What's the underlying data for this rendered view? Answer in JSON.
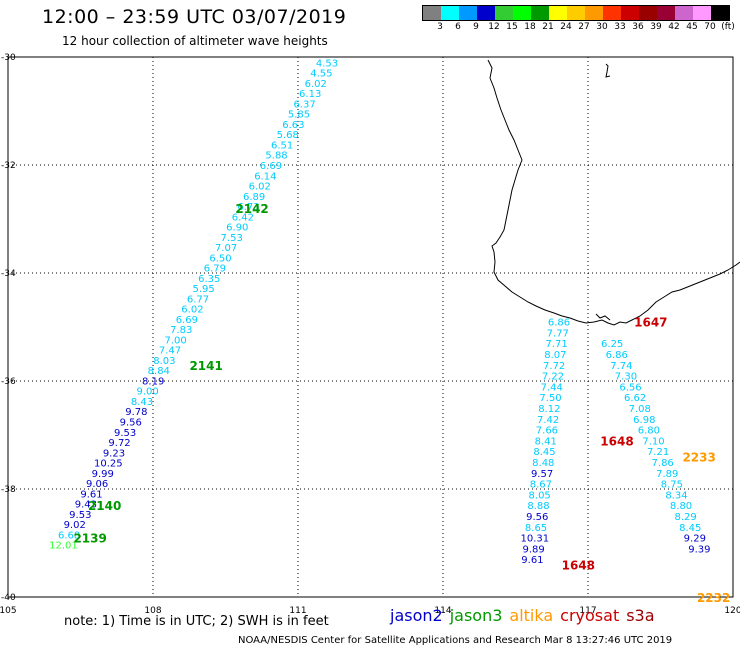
{
  "header": {
    "title": "12:00 – 23:59 UTC 03/07/2019",
    "subtitle": "12 hour collection of altimeter wave heights"
  },
  "legend": {
    "colors": [
      "#808080",
      "#00ffff",
      "#0099ff",
      "#0000cc",
      "#33cc33",
      "#00ff00",
      "#009900",
      "#ffff00",
      "#ffcc00",
      "#ff9900",
      "#ff3300",
      "#cc0000",
      "#990000",
      "#990033",
      "#cc66cc",
      "#ff99ff",
      "#000000"
    ],
    "labels": [
      "3",
      "6",
      "9",
      "12",
      "15",
      "18",
      "21",
      "24",
      "27",
      "30",
      "33",
      "36",
      "39",
      "42",
      "45",
      "70",
      "(ft)"
    ]
  },
  "axes": {
    "x_ticks": [
      "105",
      "108",
      "111",
      "114",
      "117",
      "120"
    ],
    "y_ticks": [
      "-30",
      "-32",
      "-34",
      "-36",
      "-38",
      "-40"
    ],
    "x_range": [
      105,
      120
    ],
    "y_range": [
      -40,
      -30
    ]
  },
  "footer": {
    "note": "note: 1) Time is in UTC; 2) SWH is in feet",
    "credit": "NOAA/NESDIS Center for Satellite Applications and Research   Mar  8 13:27:46 UTC 2019",
    "satellites": [
      {
        "name": "jason2",
        "color": "#0000cc"
      },
      {
        "name": "jason3",
        "color": "#009900"
      },
      {
        "name": "altika",
        "color": "#ff9900"
      },
      {
        "name": "cryosat",
        "color": "#cc0000"
      },
      {
        "name": "s3a",
        "color": "#990000"
      }
    ]
  },
  "tracks": [
    {
      "id": "jason3-west",
      "start": [
        111.6,
        -30.1
      ],
      "step": [
        -0.116,
        0.19
      ],
      "points": [
        [
          "4.53",
          "#00ccff"
        ],
        [
          "4.55",
          "#00ccff"
        ],
        [
          "6.02",
          "#00ccff"
        ],
        [
          "6.13",
          "#00ccff"
        ],
        [
          "6.37",
          "#00ccff"
        ],
        [
          "5.85",
          "#00ccff"
        ],
        [
          "6.63",
          "#00ccff"
        ],
        [
          "5.68",
          "#00ccff"
        ],
        [
          "6.51",
          "#00ccff"
        ],
        [
          "5.88",
          "#00ccff"
        ],
        [
          "6.69",
          "#00ccff"
        ],
        [
          "6.14",
          "#00ccff"
        ],
        [
          "6.02",
          "#00ccff"
        ],
        [
          "6.89",
          "#00ccff"
        ],
        [
          "6.73",
          "#00ccff"
        ],
        [
          "6.42",
          "#00ccff"
        ],
        [
          "6.90",
          "#00ccff"
        ],
        [
          "7.53",
          "#00ccff"
        ],
        [
          "7.07",
          "#00ccff"
        ],
        [
          "6.50",
          "#00ccff"
        ],
        [
          "6.79",
          "#00ccff"
        ],
        [
          "6.35",
          "#00ccff"
        ],
        [
          "5.95",
          "#00ccff"
        ],
        [
          "6.77",
          "#00ccff"
        ],
        [
          "6.02",
          "#00ccff"
        ],
        [
          "6.69",
          "#00ccff"
        ],
        [
          "7.83",
          "#00ccff"
        ],
        [
          "7.00",
          "#00ccff"
        ],
        [
          "7.47",
          "#00ccff"
        ],
        [
          "8.03",
          "#00ccff"
        ],
        [
          "8.84",
          "#00ccff"
        ],
        [
          "8.19",
          "#0000cc"
        ],
        [
          "9.00",
          "#00ccff"
        ],
        [
          "8.43",
          "#00ccff"
        ],
        [
          "9.78",
          "#0000cc"
        ],
        [
          "9.56",
          "#0000cc"
        ],
        [
          "9.53",
          "#0000cc"
        ],
        [
          "9.72",
          "#0000cc"
        ],
        [
          "9.23",
          "#0000cc"
        ],
        [
          "10.25",
          "#0000cc"
        ],
        [
          "9.99",
          "#0000cc"
        ],
        [
          "9.06",
          "#0000cc"
        ],
        [
          "9.61",
          "#0000cc"
        ],
        [
          "9.43",
          "#0000cc"
        ],
        [
          "9.53",
          "#0000cc"
        ],
        [
          "9.02",
          "#0000cc"
        ],
        [
          "6.68",
          "#00ccff"
        ],
        [
          "12.01",
          "#33ff33"
        ]
      ]
    },
    {
      "id": "jason2-east",
      "start": [
        116.4,
        -34.9
      ],
      "step": [
        -0.025,
        0.2
      ],
      "points": [
        [
          "6.86",
          "#00ccff"
        ],
        [
          "7.77",
          "#00ccff"
        ],
        [
          "7.71",
          "#00ccff"
        ],
        [
          "8.07",
          "#00ccff"
        ],
        [
          "7.72",
          "#00ccff"
        ],
        [
          "7.22",
          "#00ccff"
        ],
        [
          "7.44",
          "#00ccff"
        ],
        [
          "7.50",
          "#00ccff"
        ],
        [
          "8.12",
          "#00ccff"
        ],
        [
          "7.42",
          "#00ccff"
        ],
        [
          "7.66",
          "#00ccff"
        ],
        [
          "8.41",
          "#00ccff"
        ],
        [
          "8.45",
          "#00ccff"
        ],
        [
          "8.48",
          "#00ccff"
        ],
        [
          "9.57",
          "#0000cc"
        ],
        [
          "8.67",
          "#00ccff"
        ],
        [
          "8.05",
          "#00ccff"
        ],
        [
          "8.88",
          "#00ccff"
        ],
        [
          "9.56",
          "#0000cc"
        ],
        [
          "8.65",
          "#00ccff"
        ],
        [
          "10.31",
          "#0000cc"
        ],
        [
          "9.89",
          "#0000cc"
        ],
        [
          "9.61",
          "#0000cc"
        ]
      ]
    },
    {
      "id": "cryosat-east",
      "start": [
        117.5,
        -35.3
      ],
      "step": [
        0.095,
        0.2
      ],
      "points": [
        [
          "6.25",
          "#00ccff"
        ],
        [
          "6.86",
          "#00ccff"
        ],
        [
          "7.74",
          "#00ccff"
        ],
        [
          "7.30",
          "#00ccff"
        ],
        [
          "6.56",
          "#00ccff"
        ],
        [
          "6.62",
          "#00ccff"
        ],
        [
          "7.08",
          "#00ccff"
        ],
        [
          "6.98",
          "#00ccff"
        ],
        [
          "6.80",
          "#00ccff"
        ],
        [
          "7.10",
          "#00ccff"
        ],
        [
          "7.21",
          "#00ccff"
        ],
        [
          "7.86",
          "#00ccff"
        ],
        [
          "7.89",
          "#00ccff"
        ],
        [
          "8.75",
          "#00ccff"
        ],
        [
          "8.34",
          "#00ccff"
        ],
        [
          "8.80",
          "#00ccff"
        ],
        [
          "8.29",
          "#00ccff"
        ],
        [
          "8.45",
          "#00ccff"
        ],
        [
          "9.29",
          "#0000cc"
        ],
        [
          "9.39",
          "#0000cc"
        ]
      ]
    }
  ],
  "time_labels": [
    {
      "text": "2142",
      "lon": 110.05,
      "lat": -32.8,
      "color": "#009900"
    },
    {
      "text": "2141",
      "lon": 109.1,
      "lat": -35.7,
      "color": "#009900"
    },
    {
      "text": "2140",
      "lon": 107.0,
      "lat": -38.3,
      "color": "#009900"
    },
    {
      "text": "2139",
      "lon": 106.7,
      "lat": -38.9,
      "color": "#009900"
    },
    {
      "text": "1647",
      "lon": 118.3,
      "lat": -34.9,
      "color": "#cc0000"
    },
    {
      "text": "1648",
      "lon": 117.6,
      "lat": -37.1,
      "color": "#cc0000"
    },
    {
      "text": "1648",
      "lon": 116.8,
      "lat": -39.4,
      "color": "#cc0000"
    },
    {
      "text": "2233",
      "lon": 119.3,
      "lat": -37.4,
      "color": "#ff9900"
    },
    {
      "text": "2232",
      "lon": 119.6,
      "lat": -40.0,
      "color": "#ff9900"
    }
  ]
}
